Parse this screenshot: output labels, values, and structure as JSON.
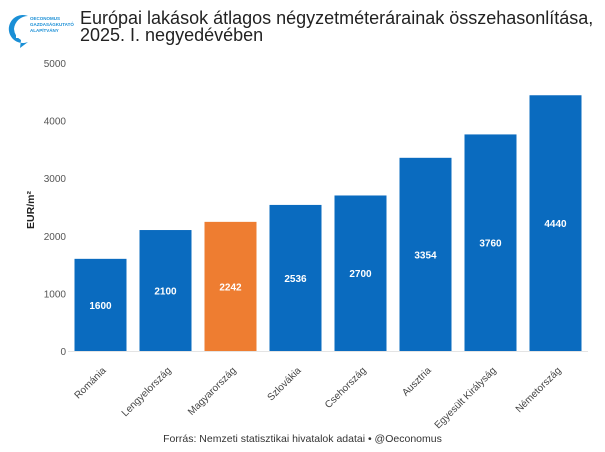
{
  "logo": {
    "text": "OECONOMUS GAZDASÁGKUTATÓ ALAPÍTVÁNY"
  },
  "source": "Forrás: Nemzeti statisztikai hivatalok adatai • @Oeconomus",
  "colors": {
    "default": "#0a6bbf",
    "highlight": "#ee7d31",
    "label": "#ffffff"
  },
  "chart_data": {
    "type": "bar",
    "title": "Európai lakások átlagos négyzetméterárainak összehasonlítása, 2025. I. negyedévében",
    "xlabel": "",
    "ylabel": "EUR/m²",
    "ylim": [
      0,
      5000
    ],
    "yticks": [
      0,
      1000,
      2000,
      3000,
      4000,
      5000
    ],
    "grid": false,
    "categories": [
      "Románia",
      "Lengyelország",
      "Magyarország",
      "Szlovákia",
      "Csehország",
      "Ausztria",
      "Egyesült Királyság",
      "Németország"
    ],
    "values": [
      1600,
      2100,
      2242,
      2536,
      2700,
      3354,
      3760,
      4440
    ],
    "highlight": "Magyarország"
  }
}
